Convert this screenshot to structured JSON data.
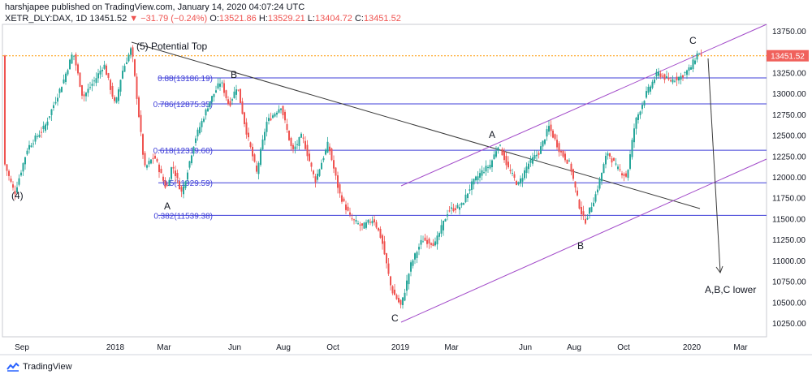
{
  "header": {
    "published": "harshjapee published on TradingView.com, January 14, 2020 04:07:24 UTC",
    "symbol": "XETR_DLY:DAX, 1D",
    "price": "13451.52",
    "change_icon": "triangle-down-icon",
    "change": "−31.79 (−0.24%)",
    "o_label": "O:",
    "o_value": "13521.86",
    "h_label": "H:",
    "h_value": "13529.21",
    "l_label": "L:",
    "l_value": "13404.72",
    "c_label": "C:",
    "c_value": "13451.52"
  },
  "footer": {
    "brand": "TradingView",
    "logo_icon": "tradingview-logo-icon"
  },
  "colors": {
    "bull": "#26a69a",
    "bear": "#ef5350",
    "fib": "#3f3fd8",
    "channel": "#a24ac9",
    "trend": "#3a3a3a",
    "price_line": "#ff9800"
  },
  "chart_data": {
    "type": "candlestick",
    "title": "",
    "ylim": [
      10050,
      13800
    ],
    "x_tick_labels": [
      "Sep",
      "2018",
      "Mar",
      "Jun",
      "Aug",
      "Oct",
      "2019",
      "Mar",
      "Jun",
      "Aug",
      "Oct",
      "2020",
      "Mar"
    ],
    "y_tick_labels": [
      "13750.00",
      "13500.00",
      "13250.00",
      "13000.00",
      "12750.00",
      "12500.00",
      "12250.00",
      "12000.00",
      "11750.00",
      "11500.00",
      "11250.00",
      "11000.00",
      "10750.00",
      "10500.00",
      "10250.00"
    ],
    "last_price_label": "13451.52",
    "fib_levels": [
      {
        "label": "0.88(13186.19)",
        "value": 13186.19
      },
      {
        "label": "0.786(12875.35)",
        "value": 12875.35
      },
      {
        "label": "0.618(12319.60)",
        "value": 12319.6
      },
      {
        "label": "0.5(11929.59)",
        "value": 11929.59
      },
      {
        "label": "0.382(11539.38)",
        "value": 11539.38
      }
    ],
    "wave_labels": [
      "(4)",
      "(5) Potential Top",
      "B",
      "A",
      "C",
      "A",
      "B",
      "C",
      "A,B,C lower"
    ]
  }
}
